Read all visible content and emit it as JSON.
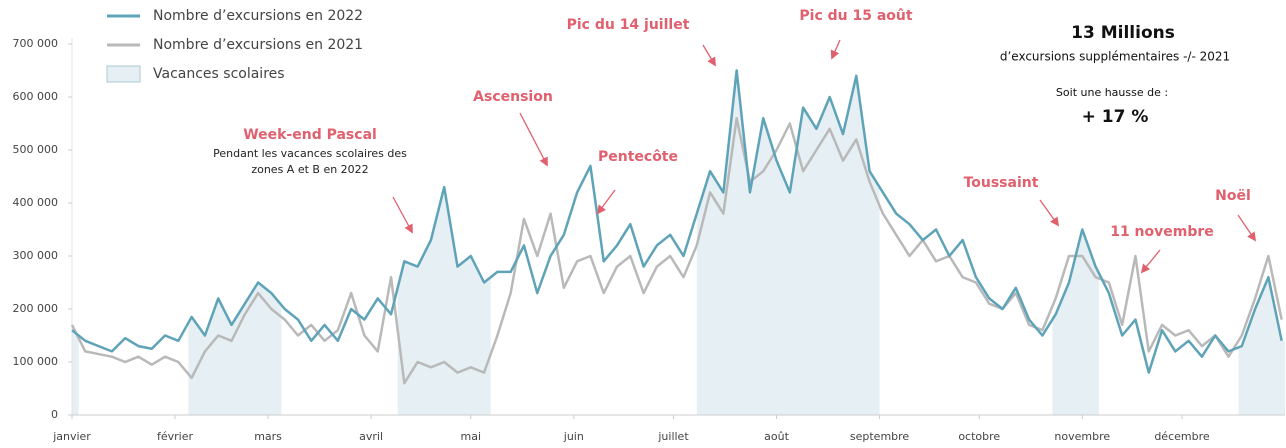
{
  "chart_data": {
    "type": "line",
    "x": [
      0,
      4,
      8,
      12,
      16,
      20,
      24,
      28,
      32,
      36,
      40,
      44,
      48,
      52,
      56,
      60,
      64,
      68,
      72,
      76,
      80,
      84,
      88,
      92,
      96,
      100,
      104,
      108,
      112,
      116,
      120,
      124,
      128,
      132,
      136,
      140,
      144,
      148,
      152,
      156,
      160,
      164,
      168,
      172,
      176,
      180,
      184,
      188,
      192,
      196,
      200,
      204,
      208,
      212,
      216,
      220,
      224,
      228,
      232,
      236,
      240,
      244,
      248,
      252,
      256,
      260,
      264,
      268,
      272,
      276,
      280,
      284,
      288,
      292,
      296,
      300,
      304,
      308,
      312,
      316,
      320,
      324,
      328,
      332,
      336,
      340,
      344,
      348,
      352,
      356,
      360,
      364
    ],
    "series": [
      {
        "name": "Nombre d’excursions en 2022",
        "color": "#5ea3b8",
        "values": [
          160000,
          140000,
          130000,
          120000,
          145000,
          130000,
          125000,
          150000,
          140000,
          185000,
          150000,
          220000,
          170000,
          210000,
          250000,
          230000,
          200000,
          180000,
          140000,
          170000,
          140000,
          200000,
          180000,
          220000,
          190000,
          290000,
          280000,
          330000,
          430000,
          280000,
          300000,
          250000,
          270000,
          270000,
          320000,
          230000,
          300000,
          340000,
          420000,
          470000,
          290000,
          320000,
          360000,
          280000,
          320000,
          340000,
          300000,
          380000,
          460000,
          420000,
          650000,
          420000,
          560000,
          480000,
          420000,
          580000,
          540000,
          600000,
          530000,
          640000,
          460000,
          420000,
          380000,
          360000,
          330000,
          350000,
          300000,
          330000,
          260000,
          220000,
          200000,
          240000,
          180000,
          150000,
          190000,
          250000,
          350000,
          280000,
          230000,
          150000,
          180000,
          80000,
          160000,
          120000,
          140000,
          110000,
          150000,
          120000,
          130000,
          200000,
          260000,
          140000
        ]
      },
      {
        "name": "Nombre d’excursions en 2021",
        "color": "#b9b9b9",
        "values": [
          170000,
          120000,
          115000,
          110000,
          100000,
          110000,
          95000,
          110000,
          100000,
          70000,
          120000,
          150000,
          140000,
          190000,
          230000,
          200000,
          180000,
          150000,
          170000,
          140000,
          160000,
          230000,
          150000,
          120000,
          260000,
          60000,
          100000,
          90000,
          100000,
          80000,
          90000,
          80000,
          150000,
          230000,
          370000,
          300000,
          380000,
          240000,
          290000,
          300000,
          230000,
          280000,
          300000,
          230000,
          280000,
          300000,
          260000,
          320000,
          420000,
          380000,
          560000,
          440000,
          460000,
          500000,
          550000,
          460000,
          500000,
          540000,
          480000,
          520000,
          440000,
          380000,
          340000,
          300000,
          330000,
          290000,
          300000,
          260000,
          250000,
          210000,
          200000,
          230000,
          170000,
          160000,
          220000,
          300000,
          300000,
          260000,
          250000,
          170000,
          300000,
          120000,
          170000,
          150000,
          160000,
          130000,
          150000,
          110000,
          150000,
          220000,
          300000,
          180000
        ]
      }
    ],
    "shaded": {
      "name": "Vacances scolaires",
      "color": "#e6eff3",
      "spans": [
        [
          0,
          2
        ],
        [
          35,
          63
        ],
        [
          98,
          126
        ],
        [
          188,
          243
        ],
        [
          295,
          309
        ],
        [
          351,
          365
        ]
      ]
    },
    "xlim": [
      0,
      365
    ],
    "xticks": [
      {
        "value": 0,
        "label": "janvier"
      },
      {
        "value": 31,
        "label": "février"
      },
      {
        "value": 59,
        "label": "mars"
      },
      {
        "value": 90,
        "label": "avril"
      },
      {
        "value": 120,
        "label": "mai"
      },
      {
        "value": 151,
        "label": "juin"
      },
      {
        "value": 181,
        "label": "juillet"
      },
      {
        "value": 212,
        "label": "août"
      },
      {
        "value": 243,
        "label": "septembre"
      },
      {
        "value": 273,
        "label": "octobre"
      },
      {
        "value": 304,
        "label": "novembre"
      },
      {
        "value": 334,
        "label": "décembre"
      }
    ],
    "ylim": [
      0,
      700000
    ],
    "yticks": [
      0,
      {
        "value": 100000,
        "label": "100 000"
      },
      {
        "value": 200000,
        "label": "200 000"
      },
      {
        "value": 300000,
        "label": "300 000"
      },
      {
        "value": 400000,
        "label": "400 000"
      },
      {
        "value": 500000,
        "label": "500 000"
      },
      {
        "value": 600000,
        "label": "600 000"
      },
      {
        "value": 700000,
        "label": "700 000"
      }
    ],
    "legend": "top-left",
    "annotations": [
      {
        "text": "Week-end Pascal",
        "note": [
          "Pendant les vacances scolaires des",
          "zones A et B en 2022"
        ]
      },
      {
        "text": "Ascension"
      },
      {
        "text": "Pentecôte"
      },
      {
        "text": "Pic du 14 juillet"
      },
      {
        "text": "Pic du 15 août"
      },
      {
        "text": "Toussaint"
      },
      {
        "text": "11 novembre"
      },
      {
        "text": "Noël"
      }
    ],
    "summary": {
      "headline": "13 Millions",
      "subline": "d’excursions supplémentaires -/- 2021",
      "lead": "Soit une hausse de :",
      "change": "+ 17 %"
    }
  }
}
